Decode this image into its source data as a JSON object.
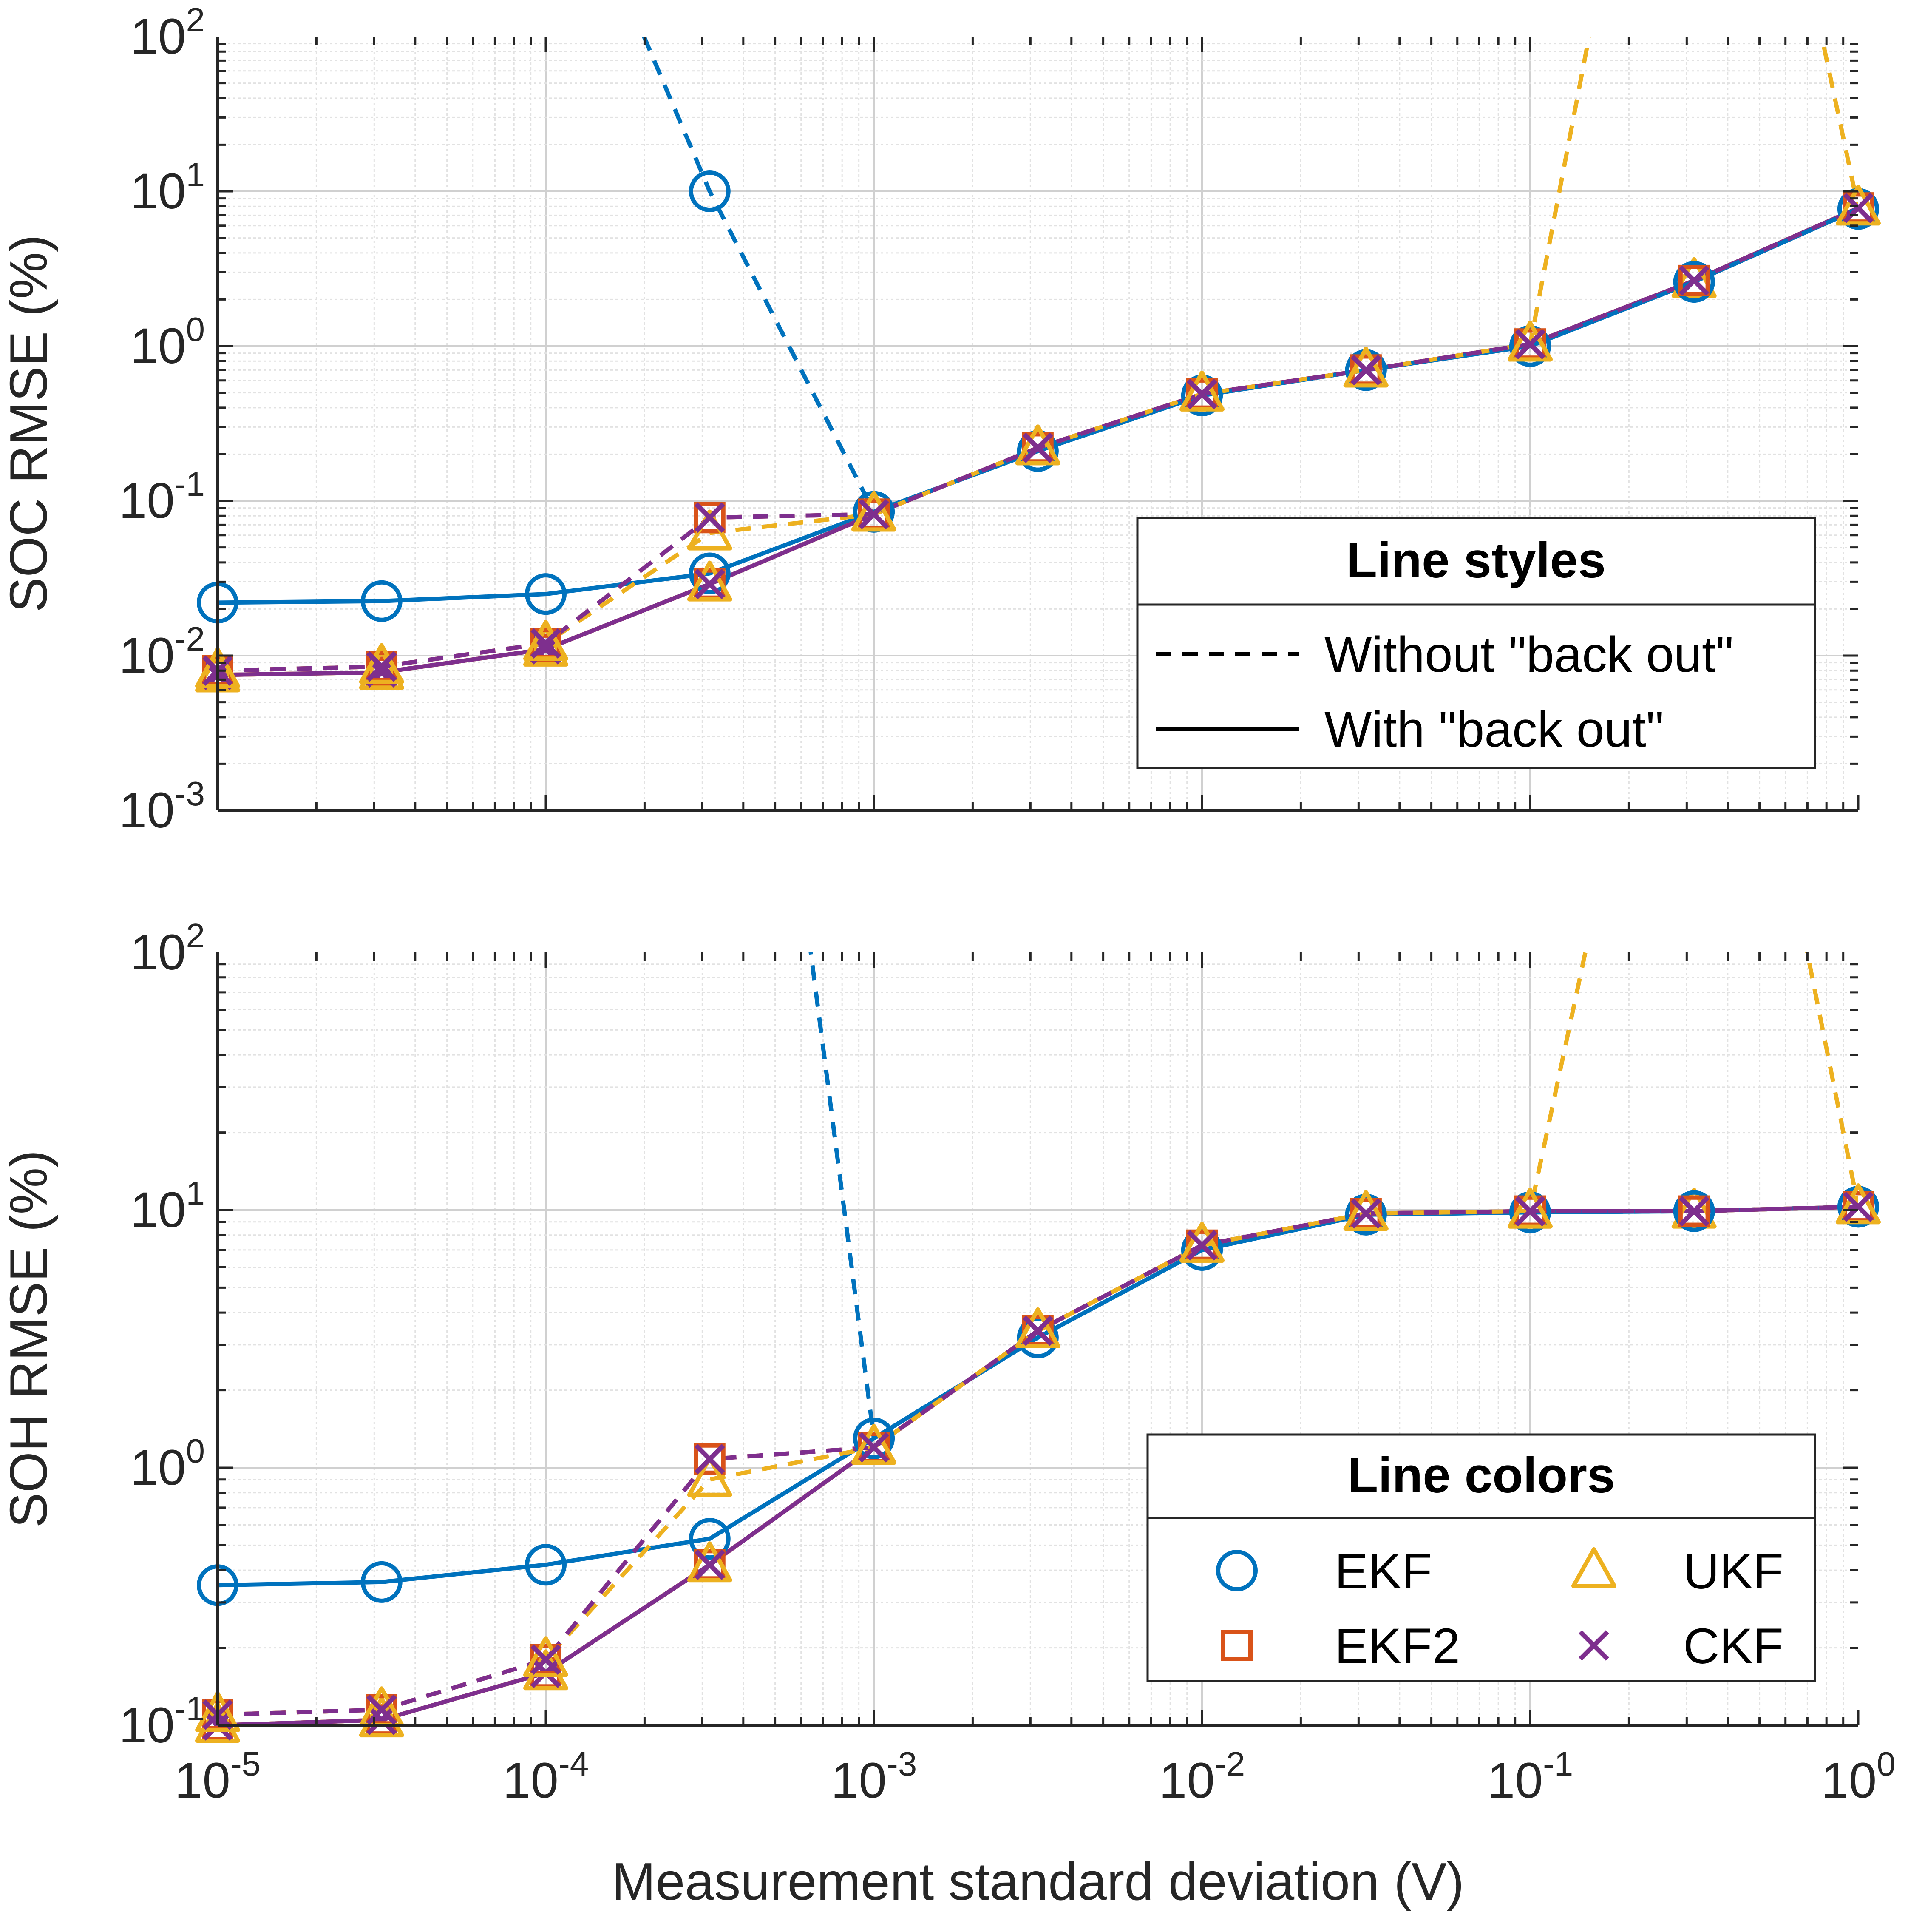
{
  "chart_data": [
    {
      "type": "line",
      "ylabel": "SOC RMSE (%)",
      "xlabel": "",
      "xscale": "log",
      "yscale": "log",
      "xlim": [
        1e-05,
        1
      ],
      "ylim": [
        0.001,
        100
      ],
      "grid": true,
      "x": [
        1e-05,
        3.16e-05,
        0.0001,
        0.000316,
        0.001,
        0.00316,
        0.01,
        0.0316,
        0.1,
        0.316,
        1
      ],
      "x_tick_labels": [
        {
          "base": "10",
          "exp": "-5"
        },
        {
          "base": "10",
          "exp": "-4"
        },
        {
          "base": "10",
          "exp": "-3"
        },
        {
          "base": "10",
          "exp": "-2"
        },
        {
          "base": "10",
          "exp": "-1"
        },
        {
          "base": "10",
          "exp": "0"
        }
      ],
      "y_tick_labels": [
        {
          "base": "10",
          "exp": "-3"
        },
        {
          "base": "10",
          "exp": "-2"
        },
        {
          "base": "10",
          "exp": "-1"
        },
        {
          "base": "10",
          "exp": "0"
        },
        {
          "base": "10",
          "exp": "1"
        },
        {
          "base": "10",
          "exp": "2"
        }
      ],
      "series": [
        {
          "name": "EKF",
          "style": "solid",
          "values": [
            0.022,
            0.0225,
            0.025,
            0.034,
            0.085,
            0.21,
            0.48,
            0.7,
            1.0,
            2.6,
            7.7
          ]
        },
        {
          "name": "EKF2",
          "style": "solid",
          "values": [
            0.0075,
            0.0078,
            0.011,
            0.029,
            0.082,
            0.22,
            0.49,
            0.7,
            1.03,
            2.65,
            7.8
          ]
        },
        {
          "name": "UKF",
          "style": "solid",
          "values": [
            0.0075,
            0.0078,
            0.011,
            0.029,
            0.082,
            0.22,
            0.49,
            0.7,
            1.03,
            2.65,
            7.8
          ]
        },
        {
          "name": "CKF",
          "style": "solid",
          "values": [
            0.0075,
            0.0078,
            0.011,
            0.029,
            0.082,
            0.22,
            0.49,
            0.7,
            1.03,
            2.65,
            7.8
          ]
        },
        {
          "name": "EKF",
          "style": "dashed",
          "values": [
            null,
            null,
            null,
            10,
            0.085,
            0.21,
            0.48,
            0.7,
            1.0,
            2.6,
            7.7
          ]
        },
        {
          "name": "EKF2",
          "style": "dashed",
          "values": [
            0.008,
            0.0085,
            0.012,
            0.078,
            0.082,
            0.22,
            0.49,
            0.7,
            1.03,
            2.65,
            7.8
          ]
        },
        {
          "name": "UKF",
          "style": "dashed",
          "values": [
            0.008,
            0.0085,
            0.012,
            0.062,
            0.082,
            0.22,
            0.49,
            0.7,
            1.03,
            null,
            7.8
          ]
        },
        {
          "name": "CKF",
          "style": "dashed",
          "values": [
            0.008,
            0.0085,
            0.012,
            0.078,
            0.082,
            0.22,
            0.49,
            0.7,
            1.03,
            2.65,
            7.8
          ]
        }
      ],
      "legend": {
        "title": "Line styles",
        "placement": "right",
        "entries": [
          {
            "style": "dashed",
            "label": "Without \"back out\""
          },
          {
            "style": "solid",
            "label": "With \"back out\""
          }
        ]
      }
    },
    {
      "type": "line",
      "ylabel": "SOH RMSE (%)",
      "xlabel": "Measurement standard deviation (V)",
      "xscale": "log",
      "yscale": "log",
      "xlim": [
        1e-05,
        1
      ],
      "ylim": [
        0.1,
        100
      ],
      "grid": true,
      "x": [
        1e-05,
        3.16e-05,
        0.0001,
        0.000316,
        0.001,
        0.00316,
        0.01,
        0.0316,
        0.1,
        0.316,
        1
      ],
      "x_tick_labels": [
        {
          "base": "10",
          "exp": "-5"
        },
        {
          "base": "10",
          "exp": "-4"
        },
        {
          "base": "10",
          "exp": "-3"
        },
        {
          "base": "10",
          "exp": "-2"
        },
        {
          "base": "10",
          "exp": "-1"
        },
        {
          "base": "10",
          "exp": "0"
        }
      ],
      "y_tick_labels": [
        {
          "base": "10",
          "exp": "-1"
        },
        {
          "base": "10",
          "exp": "0"
        },
        {
          "base": "10",
          "exp": "1"
        },
        {
          "base": "10",
          "exp": "2"
        }
      ],
      "series": [
        {
          "name": "EKF",
          "style": "solid",
          "values": [
            0.35,
            0.36,
            0.42,
            0.53,
            1.3,
            3.2,
            7.0,
            9.6,
            9.8,
            9.9,
            10.3
          ]
        },
        {
          "name": "EKF2",
          "style": "solid",
          "values": [
            0.1,
            0.105,
            0.16,
            0.42,
            1.2,
            3.4,
            7.3,
            9.7,
            9.9,
            9.9,
            10.3
          ]
        },
        {
          "name": "UKF",
          "style": "solid",
          "values": [
            0.1,
            0.105,
            0.16,
            0.42,
            1.2,
            3.4,
            7.3,
            9.7,
            9.9,
            9.9,
            10.3
          ]
        },
        {
          "name": "CKF",
          "style": "solid",
          "values": [
            0.1,
            0.105,
            0.16,
            0.42,
            1.2,
            3.4,
            7.3,
            9.7,
            9.9,
            9.9,
            10.3
          ]
        },
        {
          "name": "EKF",
          "style": "dashed",
          "values": [
            null,
            null,
            null,
            null,
            1.3,
            3.2,
            7.0,
            9.6,
            9.8,
            9.9,
            10.3
          ]
        },
        {
          "name": "EKF2",
          "style": "dashed",
          "values": [
            0.11,
            0.115,
            0.18,
            1.08,
            1.2,
            3.4,
            7.3,
            9.7,
            9.9,
            9.9,
            10.3
          ]
        },
        {
          "name": "UKF",
          "style": "dashed",
          "values": [
            0.11,
            0.115,
            0.18,
            0.9,
            1.2,
            3.4,
            7.3,
            9.7,
            9.9,
            null,
            10.3
          ]
        },
        {
          "name": "CKF",
          "style": "dashed",
          "values": [
            0.11,
            0.115,
            0.18,
            1.08,
            1.2,
            3.4,
            7.3,
            9.7,
            9.9,
            9.9,
            10.3
          ]
        }
      ],
      "legend": {
        "title": "Line colors",
        "placement": "right",
        "entries": [
          {
            "name": "EKF",
            "label": "EKF"
          },
          {
            "name": "UKF",
            "label": "UKF"
          },
          {
            "name": "EKF2",
            "label": "EKF2"
          },
          {
            "name": "CKF",
            "label": "CKF"
          }
        ]
      }
    }
  ],
  "colors": {
    "EKF": "#0072bd",
    "EKF2": "#d95319",
    "UKF": "#edb120",
    "CKF": "#7e2f8e",
    "axis": "#262626",
    "grid": "#d8d8d8"
  }
}
